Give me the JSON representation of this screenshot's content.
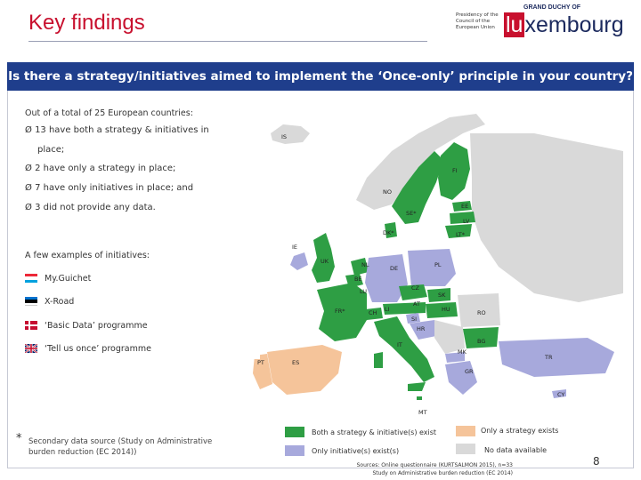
{
  "header": {
    "title": "Key findings",
    "presidency_text": "Presidency of the Council of the European Union",
    "logo_top": "GRAND DUCHY OF",
    "logo_lu": "lu",
    "logo_rest": "xembourg"
  },
  "question": "Is there a strategy/initiatives aimed to implement the ‘Once-only’ principle in your country?",
  "summary": {
    "intro": "Out of a total of 25 European countries:",
    "bullet_mark": "Ø",
    "bullets": [
      "13 have both a strategy & initiatives in",
      "place;",
      "2 have only a strategy in place;",
      "7 have only initiatives in place; and",
      "3 did not provide any data."
    ]
  },
  "examples": {
    "heading": "A few examples of initiatives:",
    "items": [
      {
        "label": "My.Guichet",
        "flag": "luxembourg-flag"
      },
      {
        "label": "X-Road",
        "flag": "estonia-flag"
      },
      {
        "label": "‘Basic Data’ programme",
        "flag": "denmark-flag"
      },
      {
        "label": "‘Tell us once’ programme",
        "flag": "uk-flag"
      }
    ]
  },
  "map": {
    "colors": {
      "both": "#2e9e44",
      "strategy_only": "#f5c49a",
      "initiatives_only": "#a7a9dc",
      "no_data": "#d9d9d9"
    },
    "labels": [
      "IS",
      "FI",
      "NO",
      "EE",
      "SE*",
      "LV",
      "DK*",
      "LT*",
      "IE",
      "UK",
      "NL",
      "DE",
      "PL",
      "BE",
      "LU",
      "CZ",
      "SK",
      "AT",
      "FR*",
      "CH",
      "LI",
      "HU",
      "SI",
      "RO",
      "HR",
      "BG",
      "IT",
      "MK",
      "TR",
      "PT",
      "ES",
      "GR",
      "CY",
      "MT"
    ]
  },
  "footnote": {
    "star": "*",
    "text_line1": "Secondary data source (Study on Administrative",
    "text_line2": "burden reduction (EC 2014))"
  },
  "legend": {
    "both": "Both a strategy & initiative(s) exist",
    "initiatives": "Only initiative(s) exist(s)",
    "strategy": "Only a strategy exists",
    "no_data": "No data available"
  },
  "sources": {
    "line1": "Sources: Online questionnaire (KURTSALMON 2015), n=33",
    "line2": "Study on Administrative burden reduction (EC 2014)"
  },
  "page_number": "8"
}
